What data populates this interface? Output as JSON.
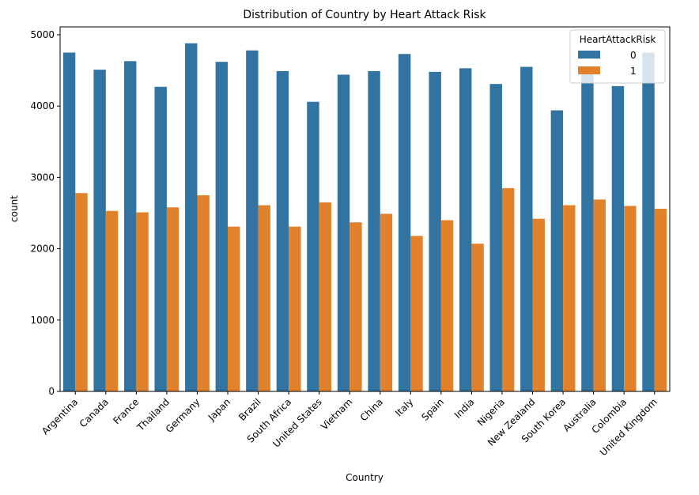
{
  "chart_data": {
    "type": "bar",
    "title": "Distribution of Country by Heart Attack Risk",
    "xlabel": "Country",
    "ylabel": "count",
    "ylim": [
      0,
      5110
    ],
    "yticks": [
      0,
      1000,
      2000,
      3000,
      4000,
      5000
    ],
    "grid": false,
    "legend": {
      "title": "HeartAttackRisk",
      "placement": "top-right"
    },
    "categories": [
      "Argentina",
      "Canada",
      "France",
      "Thailand",
      "Germany",
      "Japan",
      "Brazil",
      "South Africa",
      "United States",
      "Vietnam",
      "China",
      "Italy",
      "Spain",
      "India",
      "Nigeria",
      "New Zealand",
      "South Korea",
      "Australia",
      "Colombia",
      "United Kingdom"
    ],
    "series": [
      {
        "name": "0",
        "color": "#3274a1",
        "values": [
          4750,
          4510,
          4630,
          4270,
          4880,
          4620,
          4780,
          4490,
          4060,
          4440,
          4490,
          4730,
          4480,
          4530,
          4310,
          4550,
          3940,
          4490,
          4280,
          4750
        ]
      },
      {
        "name": "1",
        "color": "#e1812c",
        "values": [
          2780,
          2530,
          2510,
          2580,
          2750,
          2310,
          2610,
          2310,
          2650,
          2370,
          2490,
          2180,
          2400,
          2070,
          2850,
          2420,
          2610,
          2690,
          2600,
          2560
        ]
      }
    ]
  }
}
